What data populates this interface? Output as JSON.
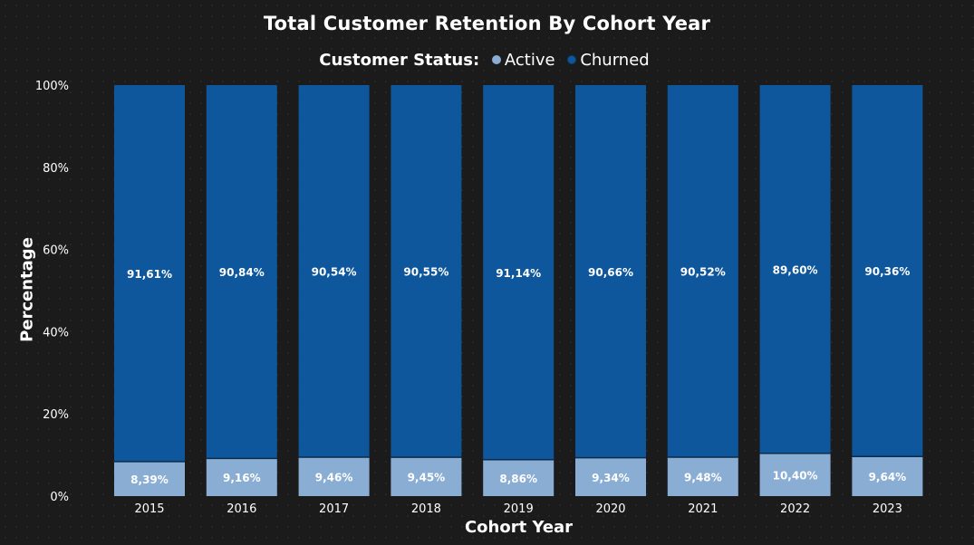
{
  "colors": {
    "active": "#8aadd4",
    "churned": "#0e579c",
    "background": "#1b1b1b",
    "text": "#ffffff"
  },
  "legend": {
    "title": "Customer Status:",
    "items": [
      {
        "label": "Active",
        "color": "#8aadd4"
      },
      {
        "label": "Churned",
        "color": "#0e579c"
      }
    ]
  },
  "chart_data": {
    "type": "bar",
    "stacked": true,
    "percent_stacked": true,
    "title": "Total Customer Retention By Cohort Year",
    "xlabel": "Cohort Year",
    "ylabel": "Percentage",
    "categories": [
      "2015",
      "2016",
      "2017",
      "2018",
      "2019",
      "2020",
      "2021",
      "2022",
      "2023"
    ],
    "yticks": [
      "0%",
      "20%",
      "40%",
      "60%",
      "80%",
      "100%"
    ],
    "ylim": [
      0,
      100
    ],
    "grid": false,
    "legend_position": "top-center",
    "series": [
      {
        "name": "Active",
        "values": [
          8.39,
          9.16,
          9.46,
          9.45,
          8.86,
          9.34,
          9.48,
          10.4,
          9.64
        ],
        "labels": [
          "8,39%",
          "9,16%",
          "9,46%",
          "9,45%",
          "8,86%",
          "9,34%",
          "9,48%",
          "10,40%",
          "9,64%"
        ]
      },
      {
        "name": "Churned",
        "values": [
          91.61,
          90.84,
          90.54,
          90.55,
          91.14,
          90.66,
          90.52,
          89.6,
          90.36
        ],
        "labels": [
          "91,61%",
          "90,84%",
          "90,54%",
          "90,55%",
          "91,14%",
          "90,66%",
          "90,52%",
          "89,60%",
          "90,36%"
        ]
      }
    ]
  }
}
